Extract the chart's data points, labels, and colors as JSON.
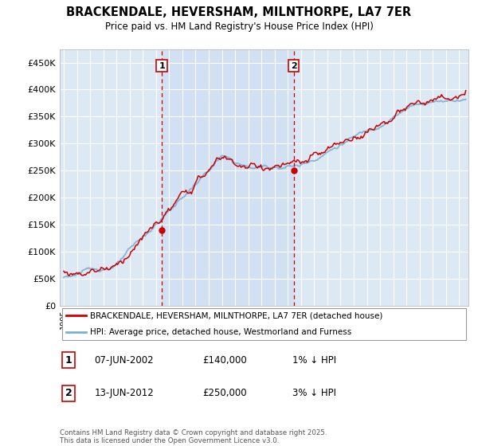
{
  "title": "BRACKENDALE, HEVERSHAM, MILNTHORPE, LA7 7ER",
  "subtitle": "Price paid vs. HM Land Registry's House Price Index (HPI)",
  "plot_bg_color": "#dce9f5",
  "shaded_bg_color": "#c8daf0",
  "ylabel_ticks": [
    "£0",
    "£50K",
    "£100K",
    "£150K",
    "£200K",
    "£250K",
    "£300K",
    "£350K",
    "£400K",
    "£450K"
  ],
  "ytick_values": [
    0,
    50000,
    100000,
    150000,
    200000,
    250000,
    300000,
    350000,
    400000,
    450000
  ],
  "ylim": [
    0,
    475000
  ],
  "xlim_start": 1994.7,
  "xlim_end": 2025.7,
  "marker1_x": 2002.44,
  "marker2_x": 2012.45,
  "legend_line1": "BRACKENDALE, HEVERSHAM, MILNTHORPE, LA7 7ER (detached house)",
  "legend_line2": "HPI: Average price, detached house, Westmorland and Furness",
  "table_row1": [
    "1",
    "07-JUN-2002",
    "£140,000",
    "1% ↓ HPI"
  ],
  "table_row2": [
    "2",
    "13-JUN-2012",
    "£250,000",
    "3% ↓ HPI"
  ],
  "footnote": "Contains HM Land Registry data © Crown copyright and database right 2025.\nThis data is licensed under the Open Government Licence v3.0.",
  "red_line_color": "#cc0000",
  "blue_line_color": "#7ab0d4",
  "marker_box_color": "#cc0000",
  "grid_color": "#e8e8e8",
  "dashed_line_color": "#cc0000"
}
